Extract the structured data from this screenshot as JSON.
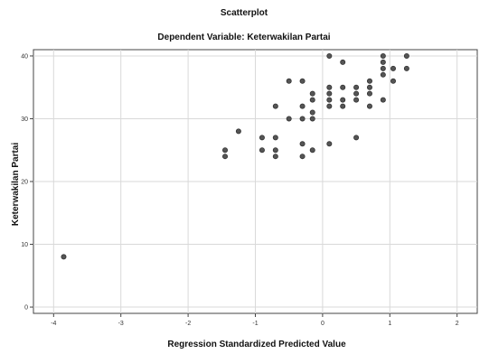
{
  "chart_data": {
    "type": "scatter",
    "title": "Scatterplot",
    "subtitle": "Dependent Variable: Keterwakilan Partai",
    "xlabel": "Regression Standardized Predicted Value",
    "ylabel": "Keterwakilan Partai",
    "xlim": [
      -4.3,
      2.3
    ],
    "ylim": [
      -1,
      41
    ],
    "x_ticks": [
      -4,
      -3,
      -2,
      -1,
      0,
      1,
      2
    ],
    "y_ticks": [
      0,
      10,
      20,
      30,
      40
    ],
    "grid": true,
    "marker_color": "#555555",
    "points": [
      {
        "x": -3.85,
        "y": 8
      },
      {
        "x": -1.45,
        "y": 24
      },
      {
        "x": -1.45,
        "y": 25
      },
      {
        "x": -1.25,
        "y": 28
      },
      {
        "x": -0.9,
        "y": 25
      },
      {
        "x": -0.9,
        "y": 27
      },
      {
        "x": -0.7,
        "y": 24
      },
      {
        "x": -0.7,
        "y": 25
      },
      {
        "x": -0.7,
        "y": 27
      },
      {
        "x": -0.7,
        "y": 32
      },
      {
        "x": -0.5,
        "y": 30
      },
      {
        "x": -0.5,
        "y": 36
      },
      {
        "x": -0.3,
        "y": 24
      },
      {
        "x": -0.3,
        "y": 26
      },
      {
        "x": -0.3,
        "y": 30
      },
      {
        "x": -0.3,
        "y": 32
      },
      {
        "x": -0.3,
        "y": 36
      },
      {
        "x": -0.15,
        "y": 25
      },
      {
        "x": -0.15,
        "y": 30
      },
      {
        "x": -0.15,
        "y": 31
      },
      {
        "x": -0.15,
        "y": 33
      },
      {
        "x": -0.15,
        "y": 34
      },
      {
        "x": 0.1,
        "y": 26
      },
      {
        "x": 0.1,
        "y": 32
      },
      {
        "x": 0.1,
        "y": 33
      },
      {
        "x": 0.1,
        "y": 34
      },
      {
        "x": 0.1,
        "y": 35
      },
      {
        "x": 0.1,
        "y": 40
      },
      {
        "x": 0.3,
        "y": 32
      },
      {
        "x": 0.3,
        "y": 33
      },
      {
        "x": 0.3,
        "y": 35
      },
      {
        "x": 0.3,
        "y": 39
      },
      {
        "x": 0.5,
        "y": 27
      },
      {
        "x": 0.5,
        "y": 33
      },
      {
        "x": 0.5,
        "y": 34
      },
      {
        "x": 0.5,
        "y": 35
      },
      {
        "x": 0.7,
        "y": 32
      },
      {
        "x": 0.7,
        "y": 34
      },
      {
        "x": 0.7,
        "y": 35
      },
      {
        "x": 0.7,
        "y": 36
      },
      {
        "x": 0.9,
        "y": 33
      },
      {
        "x": 0.9,
        "y": 37
      },
      {
        "x": 0.9,
        "y": 38
      },
      {
        "x": 0.9,
        "y": 39
      },
      {
        "x": 0.9,
        "y": 40
      },
      {
        "x": 1.05,
        "y": 36
      },
      {
        "x": 1.05,
        "y": 38
      },
      {
        "x": 1.25,
        "y": 38
      },
      {
        "x": 1.25,
        "y": 40
      }
    ]
  }
}
